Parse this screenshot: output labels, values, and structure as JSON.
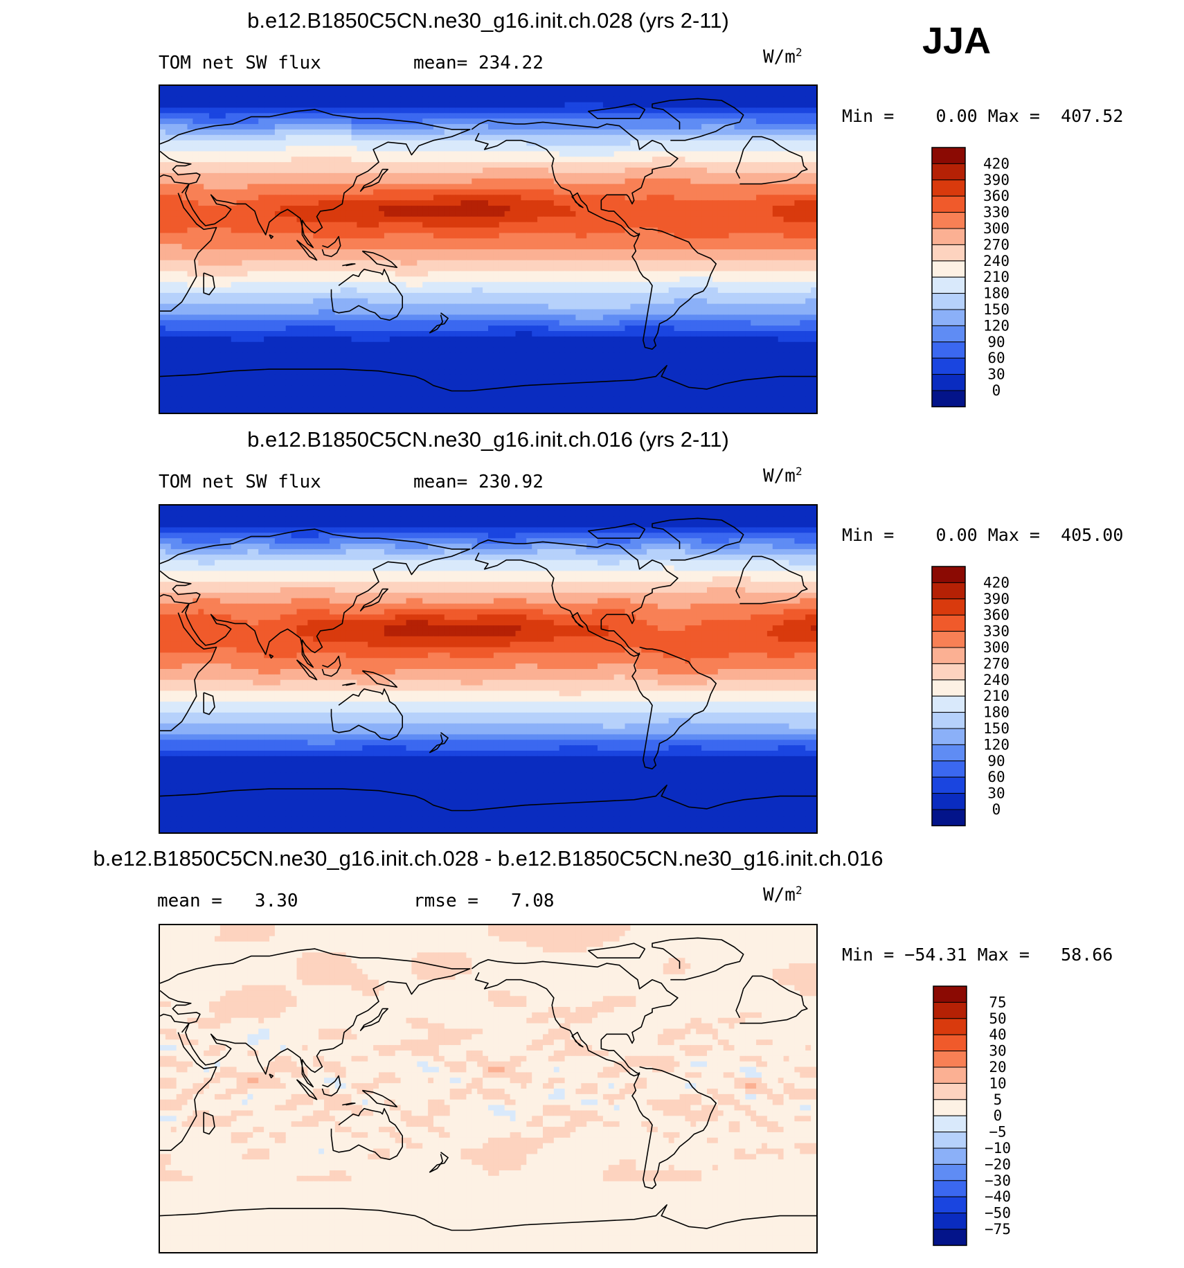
{
  "season": "JJA",
  "units": "W/m",
  "units_sup": "2",
  "panels": [
    {
      "title": "b.e12.B1850C5CN.ne30_g16.init.ch.028 (yrs 2-11)",
      "left_label": "TOM net SW flux",
      "stat_label": "mean=",
      "stat_value": "234.22",
      "minmax": "Min =    0.00 Max =  407.52",
      "kind": "abs"
    },
    {
      "title": "b.e12.B1850C5CN.ne30_g16.init.ch.016 (yrs 2-11)",
      "left_label": "TOM net SW flux",
      "stat_label": "mean=",
      "stat_value": "230.92",
      "minmax": "Min =    0.00 Max =  405.00",
      "kind": "abs"
    },
    {
      "title": "b.e12.B1850C5CN.ne30_g16.init.ch.028 - b.e12.B1850C5CN.ne30_g16.init.ch.016",
      "mean_label": "mean =",
      "mean_value": "3.30",
      "rmse_label": "rmse =",
      "rmse_value": "7.08",
      "minmax": "Min = −54.31 Max =   58.66",
      "kind": "diff"
    }
  ],
  "chart_data": [
    {
      "type": "heatmap",
      "title": "b.e12.B1850C5CN.ne30_g16.init.ch.028 (yrs 2-11)",
      "variable": "TOM net SW flux",
      "units": "W/m^2",
      "mean": 234.22,
      "min": 0.0,
      "max": 407.52,
      "levels": [
        420,
        390,
        360,
        330,
        300,
        270,
        240,
        210,
        180,
        150,
        120,
        90,
        60,
        30,
        0
      ],
      "colors": [
        "#8b0a03",
        "#b52105",
        "#d93a0d",
        "#f05a2b",
        "#f88055",
        "#fbb093",
        "#fdd3bf",
        "#fdf1e4",
        "#d9e9fb",
        "#b6d1fb",
        "#8bb0f8",
        "#5f8cf4",
        "#3b68f0",
        "#1a45e0",
        "#0a2cc0",
        "#03148a"
      ]
    },
    {
      "type": "heatmap",
      "title": "b.e12.B1850C5CN.ne30_g16.init.ch.016 (yrs 2-11)",
      "variable": "TOM net SW flux",
      "units": "W/m^2",
      "mean": 230.92,
      "min": 0.0,
      "max": 405.0,
      "levels": [
        420,
        390,
        360,
        330,
        300,
        270,
        240,
        210,
        180,
        150,
        120,
        90,
        60,
        30,
        0
      ],
      "colors": [
        "#8b0a03",
        "#b52105",
        "#d93a0d",
        "#f05a2b",
        "#f88055",
        "#fbb093",
        "#fdd3bf",
        "#fdf1e4",
        "#d9e9fb",
        "#b6d1fb",
        "#8bb0f8",
        "#5f8cf4",
        "#3b68f0",
        "#1a45e0",
        "#0a2cc0",
        "#03148a"
      ]
    },
    {
      "type": "heatmap",
      "title": "b.e12.B1850C5CN.ne30_g16.init.ch.028 - b.e12.B1850C5CN.ne30_g16.init.ch.016",
      "units": "W/m^2",
      "mean": 3.3,
      "rmse": 7.08,
      "min": -54.31,
      "max": 58.66,
      "levels": [
        75,
        50,
        40,
        30,
        20,
        10,
        5,
        0,
        -5,
        -10,
        -20,
        -30,
        -40,
        -50,
        -75
      ],
      "level_labels": [
        "75",
        "50",
        "40",
        "30",
        "20",
        "10",
        "5",
        "0",
        "−5",
        "−10",
        "−20",
        "−30",
        "−40",
        "−50",
        "−75"
      ],
      "colors": [
        "#8b0a03",
        "#b52105",
        "#d93a0d",
        "#f05a2b",
        "#f88055",
        "#fbb093",
        "#fdd3bf",
        "#fdf1e4",
        "#d9e9fb",
        "#b6d1fb",
        "#8bb0f8",
        "#5f8cf4",
        "#3b68f0",
        "#1a45e0",
        "#0a2cc0",
        "#03148a"
      ]
    }
  ]
}
